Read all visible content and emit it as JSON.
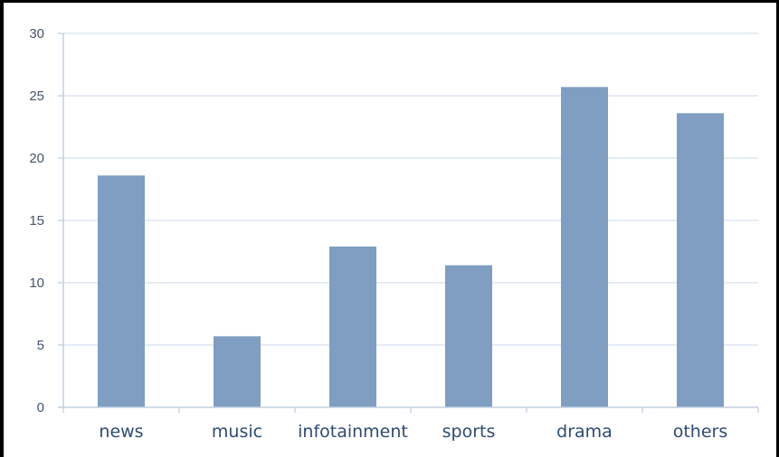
{
  "chart_data": {
    "type": "bar",
    "title": "",
    "xlabel": "",
    "ylabel": "",
    "categories": [
      "news",
      "music",
      "infotainment",
      "sports",
      "drama",
      "others"
    ],
    "values": [
      18.6,
      5.7,
      12.9,
      11.4,
      25.7,
      23.6
    ],
    "ylim": [
      0,
      30
    ],
    "yticks": [
      "0",
      "5",
      "10",
      "15",
      "20",
      "25",
      "30"
    ],
    "grid": true,
    "legend": "none",
    "colors": {
      "bar": "#7f9ec2",
      "grid": "#d6e0ee",
      "axis": "#c3d0e2",
      "tick_text": "#44546a",
      "category_text": "#2f4a76"
    }
  }
}
